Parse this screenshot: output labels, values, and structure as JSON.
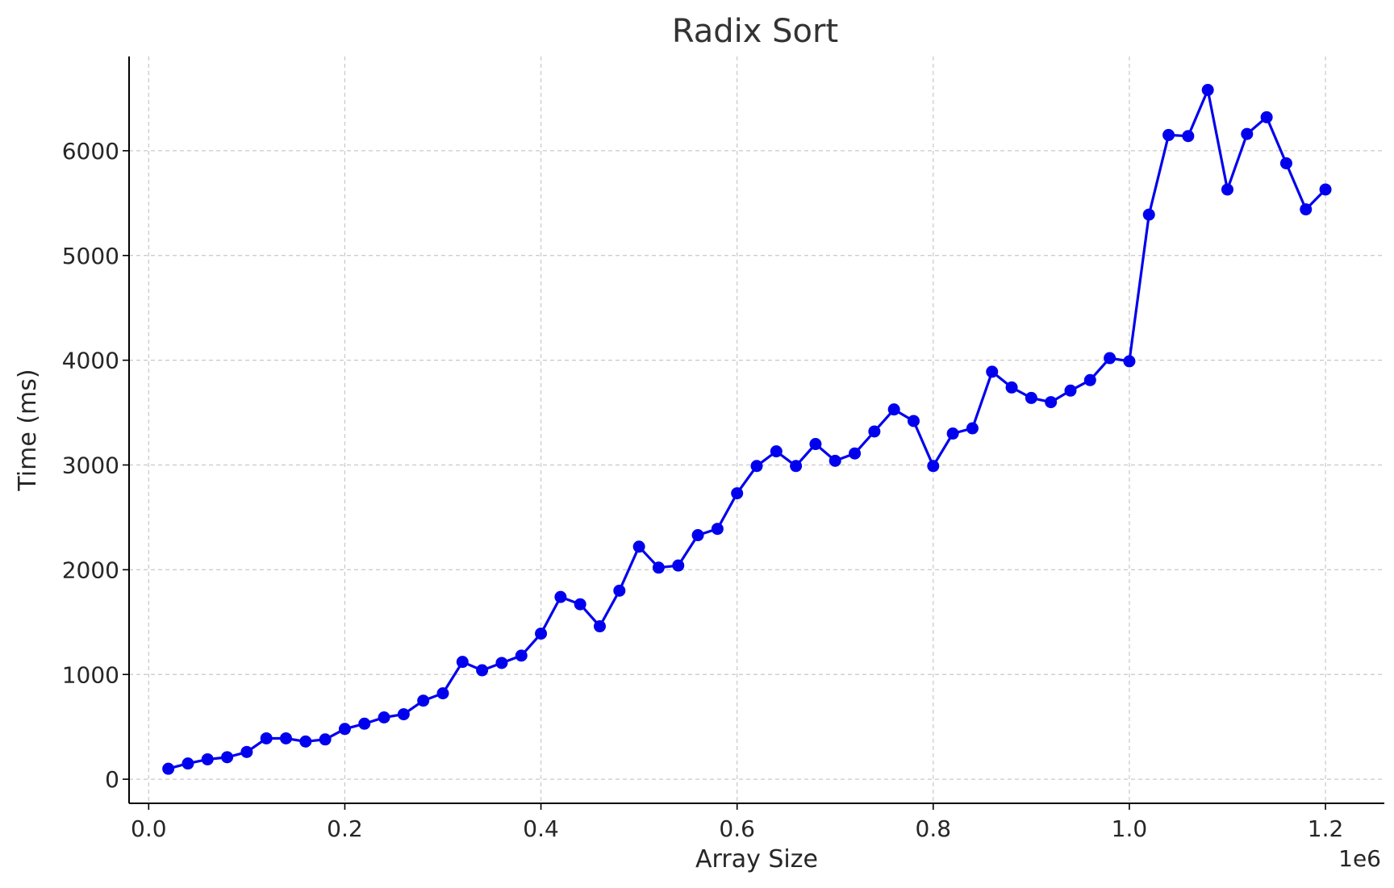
{
  "chart_data": {
    "type": "line",
    "title": "Radix Sort",
    "xlabel": "Array Size",
    "ylabel": "Time (ms)",
    "x_offset_label": "1e6",
    "xlim": [
      -0.02,
      1.26
    ],
    "ylim": [
      -230,
      6900
    ],
    "x_ticks": [
      0.0,
      0.2,
      0.4,
      0.6,
      0.8,
      1.0,
      1.2
    ],
    "x_tick_labels": [
      "0.0",
      "0.2",
      "0.4",
      "0.6",
      "0.8",
      "1.0",
      "1.2"
    ],
    "y_ticks": [
      0,
      1000,
      2000,
      3000,
      4000,
      5000,
      6000
    ],
    "y_tick_labels": [
      "0",
      "1000",
      "2000",
      "3000",
      "4000",
      "5000",
      "6000"
    ],
    "grid": true,
    "series_color": "#0000ee",
    "x": [
      0.02,
      0.04,
      0.06,
      0.08,
      0.1,
      0.12,
      0.14,
      0.16,
      0.18,
      0.2,
      0.22,
      0.24,
      0.26,
      0.28,
      0.3,
      0.32,
      0.34,
      0.36,
      0.38,
      0.4,
      0.42,
      0.44,
      0.46,
      0.48,
      0.5,
      0.52,
      0.54,
      0.56,
      0.58,
      0.6,
      0.62,
      0.64,
      0.66,
      0.68,
      0.7,
      0.72,
      0.74,
      0.76,
      0.78,
      0.8,
      0.82,
      0.84,
      0.86,
      0.88,
      0.9,
      0.92,
      0.94,
      0.96,
      0.98,
      1.0,
      1.02,
      1.04,
      1.06,
      1.08,
      1.1,
      1.12,
      1.14,
      1.16,
      1.18,
      1.2
    ],
    "series": [
      {
        "values": [
          100,
          150,
          190,
          210,
          260,
          390,
          390,
          360,
          380,
          480,
          530,
          590,
          620,
          750,
          820,
          1120,
          1040,
          1110,
          1180,
          1390,
          1740,
          1670,
          1460,
          1800,
          2220,
          2020,
          2040,
          2330,
          2390,
          2730,
          2990,
          3130,
          2990,
          3200,
          3040,
          3110,
          3320,
          3530,
          3420,
          2990,
          3300,
          3350,
          3890,
          3740,
          3640,
          3600,
          3710,
          3810,
          4020,
          3990,
          5390,
          6150,
          6140,
          6580,
          5630,
          6160,
          6320,
          5880,
          5440,
          5630
        ]
      }
    ]
  }
}
